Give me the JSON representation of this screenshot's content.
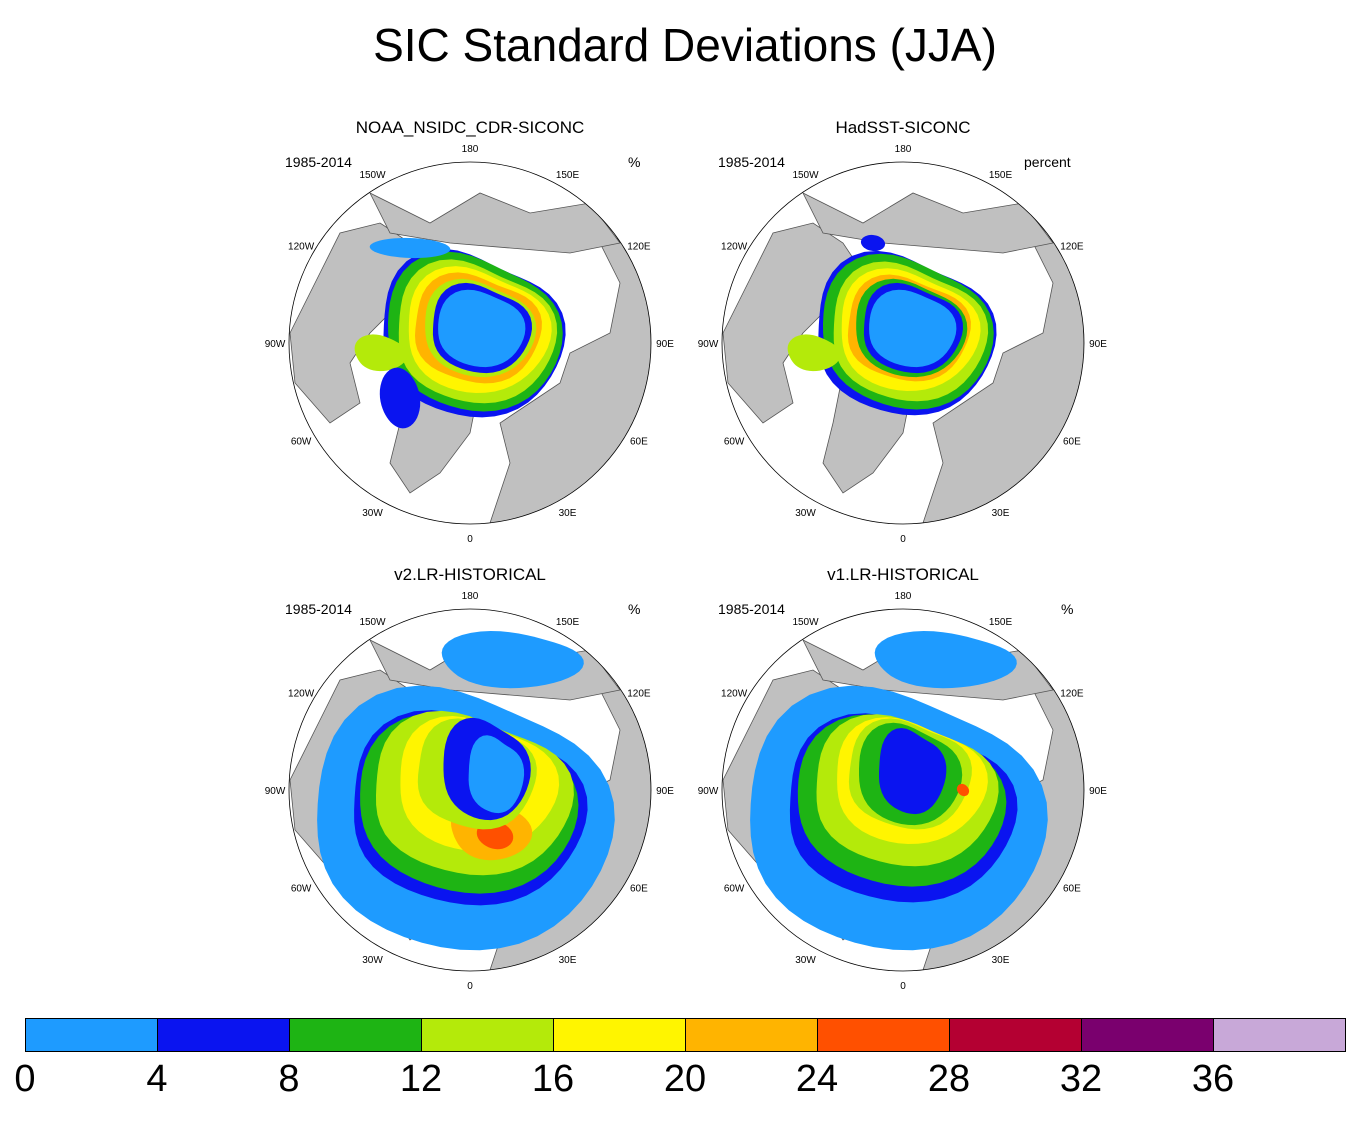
{
  "title": "SIC Standard Deviations (JJA)",
  "panels": [
    {
      "title": "NOAA_NSIDC_CDR-SICONC",
      "period": "1985-2014",
      "units": "%",
      "pattern": "obs1"
    },
    {
      "title": "HadSST-SICONC",
      "period": "1985-2014",
      "units": "percent",
      "pattern": "obs2"
    },
    {
      "title": "v2.LR-HISTORICAL",
      "period": "1985-2014",
      "units": "%",
      "pattern": "mod1"
    },
    {
      "title": "v1.LR-HISTORICAL",
      "period": "1985-2014",
      "units": "%",
      "pattern": "mod2"
    }
  ],
  "longitude_labels": [
    "180",
    "150E",
    "120E",
    "90E",
    "60E",
    "30E",
    "0",
    "30W",
    "60W",
    "90W",
    "120W",
    "150W"
  ],
  "colorbar": {
    "labels": [
      "0",
      "4",
      "8",
      "12",
      "16",
      "20",
      "24",
      "28",
      "32",
      "36"
    ],
    "colors": [
      "#1e9bff",
      "#0a14f0",
      "#1eb414",
      "#b4ea0a",
      "#fff500",
      "#ffb400",
      "#ff5000",
      "#b40032",
      "#7a006e",
      "#c8a8d8"
    ]
  },
  "colors": {
    "land": "#c0c0c0",
    "ocean": "#ffffff",
    "coast": "#555555"
  }
}
